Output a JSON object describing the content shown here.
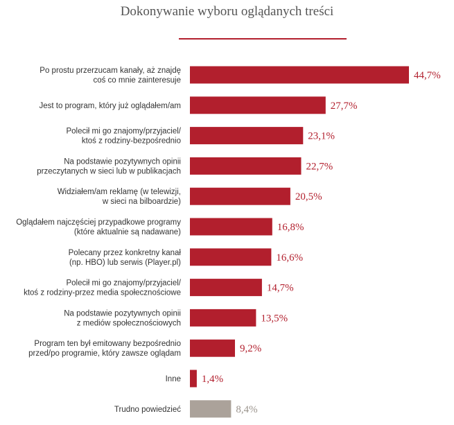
{
  "chart_data": {
    "type": "bar",
    "orientation": "horizontal",
    "title": "Dokonywanie wyboru oglądanych treści",
    "categories": [
      [
        "Po prostu przerzucam kanały, aż znajdę",
        "coś co mnie zainteresuje"
      ],
      [
        "Jest to program, który już oglądałem/am"
      ],
      [
        "Polecił mi go znajomy/przyjaciel/",
        "ktoś z rodziny-bezpośrednio"
      ],
      [
        "Na podstawie pozytywnych opinii",
        "przeczytanych w sieci lub w publikacjach"
      ],
      [
        "Widziałem/am reklamę (w telewizji,",
        "w sieci na bilboardzie)"
      ],
      [
        "Oglądałem najczęściej przypadkowe programy",
        "(które aktualnie są nadawane)"
      ],
      [
        "Polecany przez konkretny kanał",
        "(np. HBO) lub serwis (Player.pl)"
      ],
      [
        "Polecił mi go znajomy/przyjaciel/",
        "ktoś z rodziny-przez media społecznościowe"
      ],
      [
        "Na podstawie pozytywnych opinii",
        "z mediów społecznościowych"
      ],
      [
        "Program ten był emitowany bezpośrednio",
        "przed/po programie, który zawsze oglądam"
      ],
      [
        "Inne"
      ],
      [
        "Trudno powiedzieć"
      ]
    ],
    "values": [
      44.7,
      27.7,
      23.1,
      22.7,
      20.5,
      16.8,
      16.6,
      14.7,
      13.5,
      9.2,
      1.4,
      8.4
    ],
    "value_labels": [
      "44,7%",
      "27,7%",
      "23,1%",
      "22,7%",
      "20,5%",
      "16,8%",
      "16,6%",
      "14,7%",
      "13,5%",
      "9,2%",
      "1,4%",
      "8,4%"
    ],
    "highlight": [
      true,
      true,
      true,
      true,
      true,
      true,
      true,
      true,
      true,
      true,
      true,
      false
    ],
    "xlim": [
      0,
      44.7
    ],
    "grid": false,
    "legend": "none",
    "colors": {
      "bar": "#b21f2d",
      "bar_muted": "#aba29a",
      "value_text": "#b21f2d",
      "value_text_muted": "#9a938c",
      "rule": "#b21f2d"
    }
  }
}
